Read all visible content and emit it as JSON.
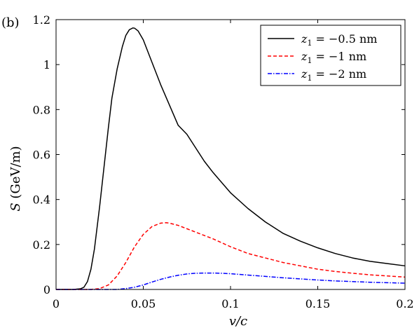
{
  "panel_label": "(b)",
  "chart_data": {
    "type": "line",
    "title": "",
    "xlabel": "v/c",
    "ylabel_var": "S",
    "ylabel_unit": " (GeV/m)",
    "xlim": [
      0,
      0.2
    ],
    "ylim": [
      0,
      1.2
    ],
    "xticks": [
      0,
      0.05,
      0.1,
      0.15,
      0.2
    ],
    "xtick_labels": [
      "0",
      "0.05",
      "0.1",
      "0.15",
      "0.2"
    ],
    "yticks": [
      0,
      0.2,
      0.4,
      0.6,
      0.8,
      1,
      1.2
    ],
    "ytick_labels": [
      "0",
      "0.2",
      "0.4",
      "0.6",
      "0.8",
      "1",
      "1.2"
    ],
    "grid": false,
    "legend_position": "top-right",
    "series": [
      {
        "name": "z1 = −0.5 nm",
        "legend_var": "z",
        "legend_sub": "1",
        "legend_rest": " = −0.5 nm",
        "color": "#000000",
        "dash": "solid",
        "x": [
          0,
          0.01,
          0.014,
          0.016,
          0.018,
          0.02,
          0.022,
          0.025,
          0.028,
          0.03,
          0.032,
          0.035,
          0.038,
          0.04,
          0.042,
          0.044,
          0.045,
          0.047,
          0.05,
          0.055,
          0.06,
          0.065,
          0.07,
          0.075,
          0.08,
          0.085,
          0.09,
          0.1,
          0.11,
          0.12,
          0.13,
          0.14,
          0.15,
          0.16,
          0.17,
          0.18,
          0.19,
          0.2
        ],
        "y": [
          0,
          0,
          0.003,
          0.01,
          0.035,
          0.09,
          0.18,
          0.37,
          0.58,
          0.72,
          0.85,
          0.98,
          1.08,
          1.13,
          1.155,
          1.163,
          1.162,
          1.15,
          1.11,
          1.01,
          0.91,
          0.82,
          0.73,
          0.69,
          0.63,
          0.57,
          0.52,
          0.43,
          0.36,
          0.3,
          0.25,
          0.215,
          0.185,
          0.16,
          0.14,
          0.125,
          0.115,
          0.105
        ]
      },
      {
        "name": "z1 = −1 nm",
        "legend_var": "z",
        "legend_sub": "1",
        "legend_rest": " = −1 nm",
        "color": "#ff0000",
        "dash": "dashed",
        "x": [
          0,
          0.02,
          0.025,
          0.03,
          0.035,
          0.04,
          0.045,
          0.05,
          0.055,
          0.06,
          0.063,
          0.065,
          0.07,
          0.075,
          0.08,
          0.09,
          0.1,
          0.11,
          0.12,
          0.13,
          0.14,
          0.15,
          0.16,
          0.17,
          0.18,
          0.19,
          0.2
        ],
        "y": [
          0,
          0,
          0.004,
          0.02,
          0.06,
          0.12,
          0.19,
          0.245,
          0.28,
          0.295,
          0.297,
          0.295,
          0.285,
          0.27,
          0.255,
          0.225,
          0.19,
          0.16,
          0.14,
          0.12,
          0.105,
          0.09,
          0.08,
          0.072,
          0.065,
          0.06,
          0.055
        ]
      },
      {
        "name": "z1 = −2 nm",
        "legend_var": "z",
        "legend_sub": "1",
        "legend_rest": " = −2 nm",
        "color": "#0000ff",
        "dash": "dashdot",
        "x": [
          0,
          0.035,
          0.04,
          0.045,
          0.05,
          0.055,
          0.06,
          0.065,
          0.07,
          0.075,
          0.08,
          0.085,
          0.09,
          0.095,
          0.1,
          0.11,
          0.12,
          0.13,
          0.14,
          0.15,
          0.16,
          0.17,
          0.18,
          0.19,
          0.2
        ],
        "y": [
          0,
          0,
          0.004,
          0.01,
          0.02,
          0.033,
          0.045,
          0.055,
          0.063,
          0.069,
          0.072,
          0.073,
          0.073,
          0.072,
          0.07,
          0.064,
          0.058,
          0.052,
          0.047,
          0.042,
          0.038,
          0.035,
          0.032,
          0.03,
          0.028
        ]
      }
    ]
  }
}
